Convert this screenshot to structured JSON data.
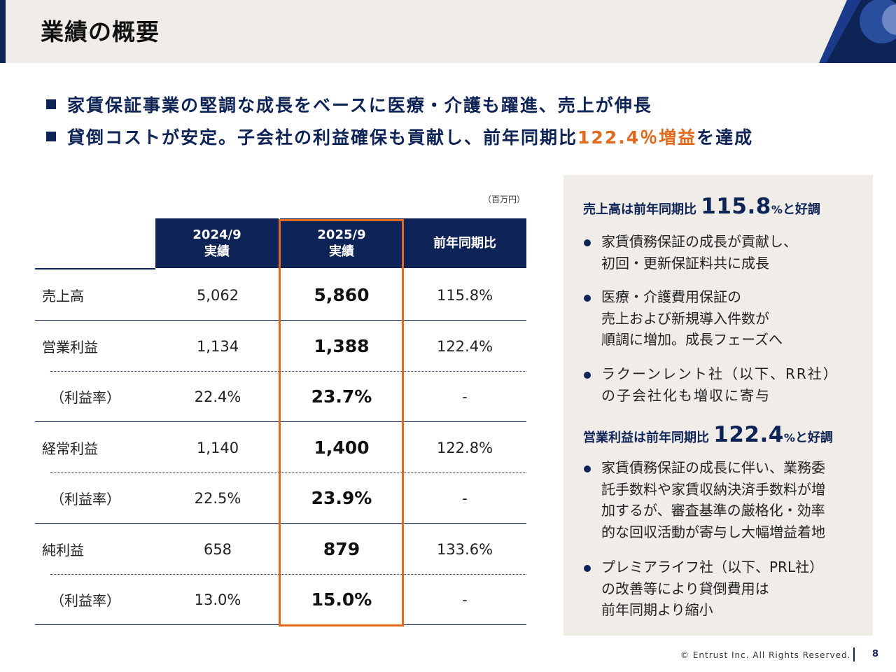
{
  "header": {
    "title": "業績の概要"
  },
  "headlines": [
    {
      "text": "家賃保証事業の堅調な成長をベースに医療・介護も躍進、売上が伸長"
    },
    {
      "pre": "貸倒コストが安定。子会社の利益確保も貢献し、前年同期比",
      "highlight": "122.4％増益",
      "post": "を達成"
    }
  ],
  "table": {
    "unit": "（百万円）",
    "columns": [
      {
        "line1": "2024/9",
        "line2": "実績"
      },
      {
        "line1": "2025/9",
        "line2": "実績"
      },
      {
        "line1": "前年同期比",
        "line2": ""
      }
    ],
    "rows": [
      {
        "label": "売上高",
        "prev": "5,062",
        "curr": "5,860",
        "yoy": "115.8%"
      },
      {
        "label": "営業利益",
        "prev": "1,134",
        "curr": "1,388",
        "yoy": "122.4%"
      },
      {
        "label": "（利益率）",
        "prev": "22.4%",
        "curr": "23.7%",
        "yoy": "-"
      },
      {
        "label": "経常利益",
        "prev": "1,140",
        "curr": "1,400",
        "yoy": "122.8%"
      },
      {
        "label": "（利益率）",
        "prev": "22.5%",
        "curr": "23.9%",
        "yoy": "-"
      },
      {
        "label": "純利益",
        "prev": "658",
        "curr": "879",
        "yoy": "133.6%"
      },
      {
        "label": "（利益率）",
        "prev": "13.0%",
        "curr": "15.0%",
        "yoy": "-"
      }
    ]
  },
  "panel": {
    "sections": [
      {
        "pre": "売上高は前年同期比 ",
        "big": "115.8",
        "pct": "%",
        "post": "と好調",
        "bullets": [
          "家賃債務保証の成長が貢献し、\n初回・更新保証料共に成長",
          "医療・介護費用保証の\n売上および新規導入件数が\n順調に増加。成長フェーズへ",
          "ラクーンレント社（以下、RR社）\nの子会社化も増収に寄与"
        ]
      },
      {
        "pre": "営業利益は前年同期比 ",
        "big": "122.4",
        "pct": "%",
        "post": "と好調",
        "bullets": [
          "家賃債務保証の成長に伴い、業務委\n託手数料や家賃収納決済手数料が増\n加するが、審査基準の厳格化・効率\n的な回収活動が寄与し大幅増益着地",
          "プレミアライフ社（以下、PRL社）\nの改善等により貸倒費用は\n前年同期より縮小"
        ]
      }
    ]
  },
  "footer": {
    "copyright": "© Entrust Inc. All Rights Reserved.",
    "page": "8"
  },
  "colors": {
    "navy": "#0f2456",
    "orange": "#e06a1e",
    "panel_bg": "#f0ede8"
  }
}
